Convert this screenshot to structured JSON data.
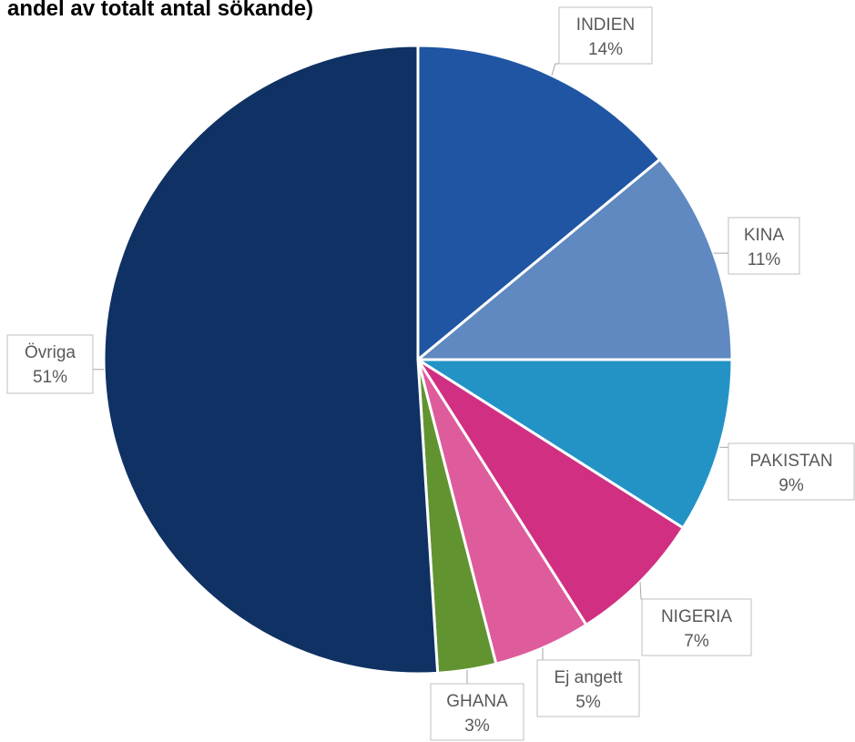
{
  "chart_data": {
    "type": "pie",
    "title": "andel av totalt antal sökande)",
    "start_angle_deg": 0,
    "direction": "clockwise",
    "legend": "none",
    "slices": [
      {
        "name": "INDIEN",
        "value": 14,
        "label": "14%",
        "color": "#1f55a3"
      },
      {
        "name": "KINA",
        "value": 11,
        "label": "11%",
        "color": "#5f89c0"
      },
      {
        "name": "PAKISTAN",
        "value": 9,
        "label": "9%",
        "color": "#2393c6"
      },
      {
        "name": "NIGERIA",
        "value": 7,
        "label": "7%",
        "color": "#d12f82"
      },
      {
        "name": "Ej angett",
        "value": 5,
        "label": "5%",
        "color": "#de5c9b"
      },
      {
        "name": "GHANA",
        "value": 3,
        "label": "3%",
        "color": "#619431"
      },
      {
        "name": "Övriga",
        "value": 51,
        "label": "51%",
        "color": "#0f3164"
      }
    ]
  }
}
